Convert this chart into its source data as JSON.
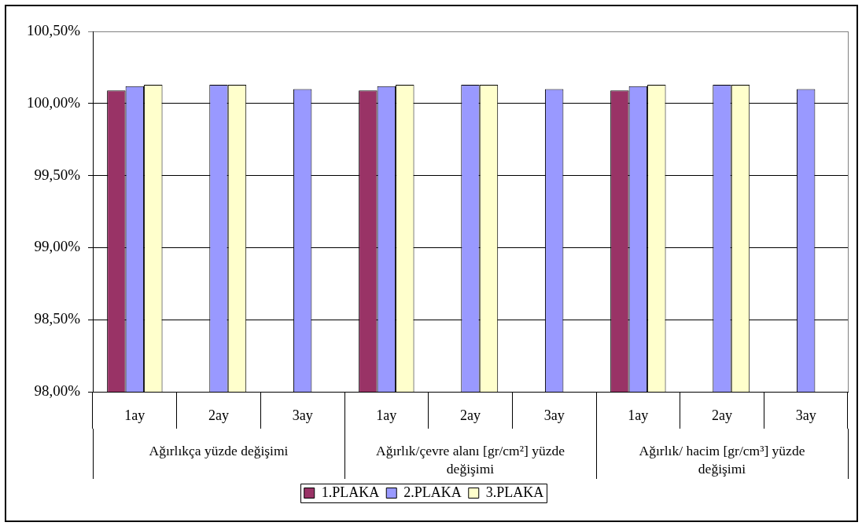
{
  "chart_data": {
    "type": "bar",
    "categories": [
      "1ay",
      "2ay",
      "3ay",
      "1ay",
      "2ay",
      "3ay",
      "1ay",
      "2ay",
      "3ay"
    ],
    "series": [
      {
        "name": "1.PLAKA",
        "color": "#993366",
        "values": [
          100.09,
          null,
          null,
          100.09,
          null,
          null,
          100.09,
          null,
          null
        ]
      },
      {
        "name": "2.PLAKA",
        "color": "#9999ff",
        "values": [
          100.12,
          100.13,
          100.1,
          100.12,
          100.13,
          100.1,
          100.12,
          100.13,
          100.1
        ]
      },
      {
        "name": "3.PLAKA",
        "color": "#ffffcc",
        "values": [
          100.13,
          100.13,
          null,
          100.13,
          100.13,
          null,
          100.13,
          100.13,
          null
        ]
      }
    ],
    "ylim": [
      98,
      100.5
    ],
    "yticks": [
      {
        "value": 98,
        "label": "98,00%"
      },
      {
        "value": 98.5,
        "label": "98,50%"
      },
      {
        "value": 99,
        "label": "99,00%"
      },
      {
        "value": 99.5,
        "label": "99,50%"
      },
      {
        "value": 100,
        "label": "100,00%"
      },
      {
        "value": 100.5,
        "label": "100,50%"
      }
    ],
    "grid": "y",
    "legend": "bottom",
    "annotations": [
      "Ağırlıkça yüzde değişimi",
      "Ağırlık/çevre alanı [gr/cm²] yüzde değişimi",
      "Ağırlık/ hacim [gr/cm³] yüzde değişimi"
    ]
  }
}
